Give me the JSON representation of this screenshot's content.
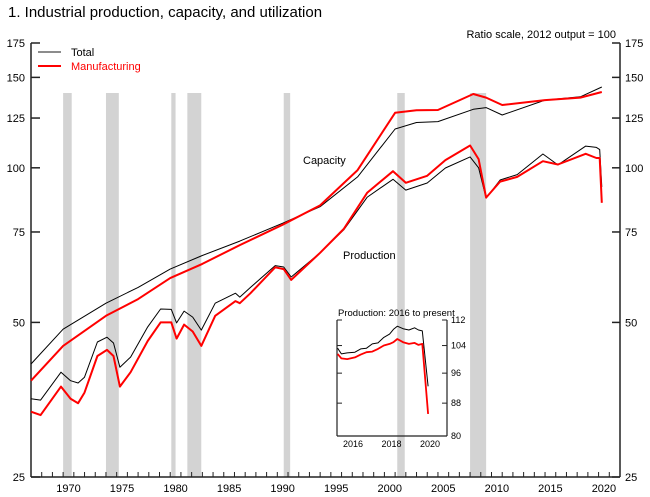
{
  "title": "1.  Industrial production, capacity, and utilization",
  "chart_data": [
    {
      "type": "line",
      "title": "1.  Industrial production, capacity, and utilization",
      "note": "Ratio scale, 2012 output = 100",
      "scale": "log",
      "xlim": [
        1967,
        2022
      ],
      "ylim": [
        25,
        175
      ],
      "y_ticks": [
        25,
        50,
        75,
        100,
        125,
        150,
        175
      ],
      "x_tick_labels": [
        1970,
        1975,
        1980,
        1985,
        1990,
        1995,
        2000,
        2005,
        2010,
        2015,
        2020
      ],
      "legend": {
        "placement": "top-left",
        "entries": [
          {
            "name": "Total",
            "color": "#000000"
          },
          {
            "name": "Manufacturing",
            "color": "#ff0000"
          }
        ]
      },
      "annotations": [
        "Capacity",
        "Production"
      ],
      "recessions": [
        [
          1970.0,
          1970.8
        ],
        [
          1974.0,
          1975.2
        ],
        [
          1980.1,
          1980.5
        ],
        [
          1981.6,
          1982.9
        ],
        [
          1990.6,
          1991.2
        ],
        [
          2001.2,
          2001.9
        ],
        [
          2008.0,
          2009.5
        ]
      ],
      "recession_color": "#d3d3d3",
      "series": [
        {
          "name": "Total",
          "group": "Capacity",
          "color": "#000000",
          "x": [
            1967,
            1970,
            1974,
            1977,
            1980,
            1983,
            1986.5,
            1990.5,
            1994,
            1997.5,
            2001,
            2003,
            2005,
            2008.3,
            2009.5,
            2011,
            2015,
            2018.3,
            2020.3
          ],
          "y": [
            41.5,
            48.5,
            54.5,
            58.5,
            63.5,
            67.5,
            72,
            78,
            84,
            96,
            119,
            122.5,
            123,
            130,
            131,
            126.7,
            135.5,
            137.5,
            143.7
          ]
        },
        {
          "name": "Manufacturing",
          "group": "Capacity",
          "color": "#ff0000",
          "x": [
            1967,
            1970,
            1974,
            1977,
            1980,
            1983,
            1986.5,
            1990.5,
            1994,
            1997.5,
            2001,
            2003,
            2005,
            2008.3,
            2009.5,
            2011,
            2015,
            2018.3,
            2020.3
          ],
          "y": [
            38.5,
            45,
            51.5,
            55.5,
            61,
            65,
            70.7,
            77.5,
            84.5,
            99,
            128,
            129.5,
            129.6,
            139.2,
            137,
            132.5,
            135.5,
            137,
            140.5
          ]
        },
        {
          "name": "Total",
          "group": "Production",
          "color": "#000000",
          "x": [
            1967,
            1967.9,
            1969.8,
            1970.7,
            1971.4,
            1972,
            1973.2,
            1974.1,
            1974.7,
            1975.3,
            1976.3,
            1977.9,
            1979.1,
            1980.1,
            1980.6,
            1981.3,
            1982.1,
            1982.9,
            1984.2,
            1986.1,
            1986.5,
            1987.5,
            1989.8,
            1990.6,
            1991.3,
            1994,
            1996.2,
            1998.4,
            2000.8,
            2002,
            2004,
            2005.7,
            2008,
            2008.8,
            2009.5,
            2010.8,
            2012.4,
            2014.8,
            2016.2,
            2018.8,
            2019.8,
            2020.1,
            2020.3
          ],
          "y": [
            35.5,
            35.3,
            40.0,
            38.5,
            38.1,
            39.1,
            45.8,
            46.8,
            45.6,
            40.9,
            42.8,
            49.0,
            53.1,
            53.0,
            49.9,
            52.6,
            51.2,
            48.3,
            54.5,
            57.0,
            56.0,
            58.5,
            64.5,
            64.1,
            61.3,
            68.3,
            75.7,
            87.7,
            95,
            90.5,
            93.4,
            99.9,
            105.0,
            100,
            87.3,
            94.7,
            97,
            106.4,
            101.3,
            110.2,
            109.6,
            108.5,
            91.8
          ]
        },
        {
          "name": "Manufacturing",
          "group": "Production",
          "color": "#ff0000",
          "x": [
            1967,
            1967.9,
            1969.8,
            1970.7,
            1971.4,
            1972,
            1973.2,
            1974.1,
            1974.7,
            1975.3,
            1976.3,
            1977.9,
            1979.1,
            1980.1,
            1980.6,
            1981.3,
            1982.1,
            1982.9,
            1984.2,
            1986.1,
            1986.5,
            1987.5,
            1989.8,
            1990.6,
            1991.3,
            1994,
            1996.2,
            1998.4,
            2000.8,
            2002,
            2004,
            2005.7,
            2008,
            2008.8,
            2009.5,
            2010.8,
            2012.4,
            2014.8,
            2016.2,
            2018.8,
            2019.8,
            2020.1,
            2020.3
          ],
          "y": [
            33.5,
            33.0,
            37.5,
            35.5,
            34.8,
            36.5,
            43.0,
            44.2,
            43.0,
            37.5,
            40.0,
            46.0,
            50.0,
            50.0,
            46.5,
            49.5,
            48.0,
            45.0,
            51.5,
            55.0,
            54.5,
            57,
            64,
            63.5,
            60.5,
            68.3,
            76,
            89.5,
            98.5,
            93.5,
            96.5,
            103.5,
            110.5,
            104,
            87.5,
            94,
            96,
            103,
            101.5,
            106.5,
            104.5,
            104.5,
            85.5
          ]
        }
      ]
    },
    {
      "type": "line",
      "title": "Production: 2016 to present",
      "scale": "log",
      "xlim": [
        2015.67,
        2021.38
      ],
      "ylim": [
        80,
        112
      ],
      "y_ticks": [
        80,
        88,
        96,
        104,
        112
      ],
      "x_tick_labels": [
        2016,
        2018,
        2020
      ],
      "series": [
        {
          "name": "Total",
          "color": "#000000",
          "x": [
            2015.7,
            2015.9,
            2016.2,
            2016.6,
            2016.9,
            2017.2,
            2017.5,
            2017.8,
            2018.1,
            2018.4,
            2018.6,
            2018.8,
            2019.1,
            2019.4,
            2019.7,
            2019.9,
            2020.1,
            2020.4
          ],
          "y": [
            103.2,
            101.5,
            101.8,
            102.0,
            103.0,
            103.2,
            104.5,
            104.8,
            106.5,
            107.5,
            109.0,
            110.0,
            109.2,
            108.8,
            109.5,
            108.8,
            108.5,
            92.4
          ]
        },
        {
          "name": "Manufacturing",
          "color": "#ff0000",
          "x": [
            2015.7,
            2015.9,
            2016.2,
            2016.6,
            2016.9,
            2017.2,
            2017.5,
            2017.8,
            2018.1,
            2018.4,
            2018.6,
            2018.8,
            2019.1,
            2019.4,
            2019.7,
            2019.9,
            2020.1,
            2020.4
          ],
          "y": [
            101.5,
            100.2,
            100.0,
            100.5,
            101.3,
            102.0,
            102.2,
            103.0,
            104.0,
            104.5,
            105.0,
            106.0,
            105.0,
            104.5,
            104.8,
            104.2,
            104.5,
            85.3
          ]
        }
      ]
    }
  ]
}
